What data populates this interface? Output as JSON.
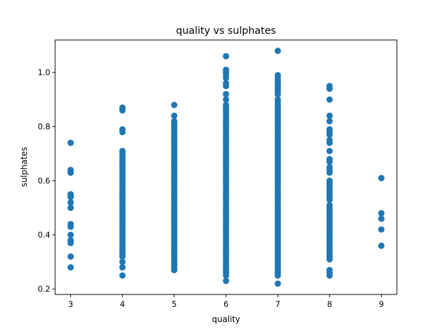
{
  "chart_data": {
    "type": "scatter",
    "title": "quality vs sulphates",
    "xlabel": "quality",
    "ylabel": "sulphates",
    "xlim": [
      2.7,
      9.3
    ],
    "ylim": [
      0.18,
      1.12
    ],
    "xticks": [
      3,
      4,
      5,
      6,
      7,
      8,
      9
    ],
    "xtick_labels": [
      "3",
      "4",
      "5",
      "6",
      "7",
      "8",
      "9"
    ],
    "yticks": [
      0.2,
      0.4,
      0.6,
      0.8,
      1.0
    ],
    "ytick_labels": [
      "0.2",
      "0.4",
      "0.6",
      "0.8",
      "1.0"
    ],
    "grid": false,
    "marker_color": "#1f77b4",
    "series": [
      {
        "points": [
          [
            3,
            0.74
          ],
          [
            3,
            0.64
          ],
          [
            3,
            0.63
          ],
          [
            3,
            0.55
          ],
          [
            3,
            0.54
          ],
          [
            3,
            0.52
          ],
          [
            3,
            0.5
          ],
          [
            3,
            0.44
          ],
          [
            3,
            0.43
          ],
          [
            3,
            0.4
          ],
          [
            3,
            0.38
          ],
          [
            3,
            0.37
          ],
          [
            3,
            0.32
          ],
          [
            3,
            0.28
          ],
          [
            4,
            0.87
          ],
          [
            4,
            0.86
          ],
          [
            4,
            0.79
          ],
          [
            4,
            0.78
          ],
          [
            4,
            0.71
          ],
          [
            4,
            0.7
          ],
          [
            4,
            0.69
          ],
          [
            4,
            0.68
          ],
          [
            4,
            0.67
          ],
          [
            4,
            0.66
          ],
          [
            4,
            0.65
          ],
          [
            4,
            0.64
          ],
          [
            4,
            0.63
          ],
          [
            4,
            0.62
          ],
          [
            4,
            0.61
          ],
          [
            4,
            0.6
          ],
          [
            4,
            0.59
          ],
          [
            4,
            0.58
          ],
          [
            4,
            0.57
          ],
          [
            4,
            0.56
          ],
          [
            4,
            0.55
          ],
          [
            4,
            0.54
          ],
          [
            4,
            0.53
          ],
          [
            4,
            0.52
          ],
          [
            4,
            0.51
          ],
          [
            4,
            0.5
          ],
          [
            4,
            0.49
          ],
          [
            4,
            0.48
          ],
          [
            4,
            0.47
          ],
          [
            4,
            0.46
          ],
          [
            4,
            0.45
          ],
          [
            4,
            0.44
          ],
          [
            4,
            0.43
          ],
          [
            4,
            0.42
          ],
          [
            4,
            0.41
          ],
          [
            4,
            0.4
          ],
          [
            4,
            0.39
          ],
          [
            4,
            0.38
          ],
          [
            4,
            0.37
          ],
          [
            4,
            0.36
          ],
          [
            4,
            0.35
          ],
          [
            4,
            0.34
          ],
          [
            4,
            0.33
          ],
          [
            4,
            0.32
          ],
          [
            4,
            0.3
          ],
          [
            4,
            0.28
          ],
          [
            4,
            0.25
          ],
          [
            5,
            0.88
          ],
          [
            5,
            0.84
          ],
          [
            5,
            0.82
          ],
          [
            5,
            0.81
          ],
          [
            5,
            0.8
          ],
          [
            5,
            0.79
          ],
          [
            5,
            0.78
          ],
          [
            5,
            0.77
          ],
          [
            5,
            0.76
          ],
          [
            5,
            0.75
          ],
          [
            5,
            0.74
          ],
          [
            5,
            0.73
          ],
          [
            5,
            0.72
          ],
          [
            5,
            0.71
          ],
          [
            5,
            0.7
          ],
          [
            5,
            0.69
          ],
          [
            5,
            0.68
          ],
          [
            5,
            0.67
          ],
          [
            5,
            0.66
          ],
          [
            5,
            0.65
          ],
          [
            5,
            0.64
          ],
          [
            5,
            0.63
          ],
          [
            5,
            0.62
          ],
          [
            5,
            0.61
          ],
          [
            5,
            0.6
          ],
          [
            5,
            0.59
          ],
          [
            5,
            0.58
          ],
          [
            5,
            0.57
          ],
          [
            5,
            0.56
          ],
          [
            5,
            0.55
          ],
          [
            5,
            0.54
          ],
          [
            5,
            0.53
          ],
          [
            5,
            0.52
          ],
          [
            5,
            0.51
          ],
          [
            5,
            0.5
          ],
          [
            5,
            0.49
          ],
          [
            5,
            0.48
          ],
          [
            5,
            0.47
          ],
          [
            5,
            0.46
          ],
          [
            5,
            0.45
          ],
          [
            5,
            0.44
          ],
          [
            5,
            0.43
          ],
          [
            5,
            0.42
          ],
          [
            5,
            0.41
          ],
          [
            5,
            0.4
          ],
          [
            5,
            0.39
          ],
          [
            5,
            0.38
          ],
          [
            5,
            0.37
          ],
          [
            5,
            0.36
          ],
          [
            5,
            0.35
          ],
          [
            5,
            0.34
          ],
          [
            5,
            0.33
          ],
          [
            5,
            0.32
          ],
          [
            5,
            0.31
          ],
          [
            5,
            0.3
          ],
          [
            5,
            0.29
          ],
          [
            5,
            0.28
          ],
          [
            5,
            0.27
          ],
          [
            6,
            1.06
          ],
          [
            6,
            1.01
          ],
          [
            6,
            1.0
          ],
          [
            6,
            0.99
          ],
          [
            6,
            0.98
          ],
          [
            6,
            0.96
          ],
          [
            6,
            0.95
          ],
          [
            6,
            0.92
          ],
          [
            6,
            0.9
          ],
          [
            6,
            0.88
          ],
          [
            6,
            0.87
          ],
          [
            6,
            0.86
          ],
          [
            6,
            0.85
          ],
          [
            6,
            0.84
          ],
          [
            6,
            0.83
          ],
          [
            6,
            0.82
          ],
          [
            6,
            0.81
          ],
          [
            6,
            0.8
          ],
          [
            6,
            0.79
          ],
          [
            6,
            0.78
          ],
          [
            6,
            0.77
          ],
          [
            6,
            0.76
          ],
          [
            6,
            0.75
          ],
          [
            6,
            0.74
          ],
          [
            6,
            0.73
          ],
          [
            6,
            0.72
          ],
          [
            6,
            0.71
          ],
          [
            6,
            0.7
          ],
          [
            6,
            0.69
          ],
          [
            6,
            0.68
          ],
          [
            6,
            0.67
          ],
          [
            6,
            0.66
          ],
          [
            6,
            0.65
          ],
          [
            6,
            0.64
          ],
          [
            6,
            0.63
          ],
          [
            6,
            0.62
          ],
          [
            6,
            0.61
          ],
          [
            6,
            0.6
          ],
          [
            6,
            0.59
          ],
          [
            6,
            0.58
          ],
          [
            6,
            0.57
          ],
          [
            6,
            0.56
          ],
          [
            6,
            0.55
          ],
          [
            6,
            0.54
          ],
          [
            6,
            0.53
          ],
          [
            6,
            0.52
          ],
          [
            6,
            0.51
          ],
          [
            6,
            0.5
          ],
          [
            6,
            0.49
          ],
          [
            6,
            0.48
          ],
          [
            6,
            0.47
          ],
          [
            6,
            0.46
          ],
          [
            6,
            0.45
          ],
          [
            6,
            0.44
          ],
          [
            6,
            0.43
          ],
          [
            6,
            0.42
          ],
          [
            6,
            0.41
          ],
          [
            6,
            0.4
          ],
          [
            6,
            0.39
          ],
          [
            6,
            0.38
          ],
          [
            6,
            0.37
          ],
          [
            6,
            0.36
          ],
          [
            6,
            0.35
          ],
          [
            6,
            0.34
          ],
          [
            6,
            0.33
          ],
          [
            6,
            0.32
          ],
          [
            6,
            0.31
          ],
          [
            6,
            0.3
          ],
          [
            6,
            0.29
          ],
          [
            6,
            0.28
          ],
          [
            6,
            0.27
          ],
          [
            6,
            0.26
          ],
          [
            6,
            0.25
          ],
          [
            6,
            0.23
          ],
          [
            7,
            1.08
          ],
          [
            7,
            0.99
          ],
          [
            7,
            0.98
          ],
          [
            7,
            0.97
          ],
          [
            7,
            0.96
          ],
          [
            7,
            0.95
          ],
          [
            7,
            0.94
          ],
          [
            7,
            0.93
          ],
          [
            7,
            0.92
          ],
          [
            7,
            0.9
          ],
          [
            7,
            0.89
          ],
          [
            7,
            0.88
          ],
          [
            7,
            0.87
          ],
          [
            7,
            0.86
          ],
          [
            7,
            0.85
          ],
          [
            7,
            0.84
          ],
          [
            7,
            0.83
          ],
          [
            7,
            0.82
          ],
          [
            7,
            0.81
          ],
          [
            7,
            0.8
          ],
          [
            7,
            0.79
          ],
          [
            7,
            0.78
          ],
          [
            7,
            0.77
          ],
          [
            7,
            0.76
          ],
          [
            7,
            0.75
          ],
          [
            7,
            0.74
          ],
          [
            7,
            0.73
          ],
          [
            7,
            0.72
          ],
          [
            7,
            0.71
          ],
          [
            7,
            0.7
          ],
          [
            7,
            0.69
          ],
          [
            7,
            0.68
          ],
          [
            7,
            0.67
          ],
          [
            7,
            0.66
          ],
          [
            7,
            0.65
          ],
          [
            7,
            0.64
          ],
          [
            7,
            0.63
          ],
          [
            7,
            0.62
          ],
          [
            7,
            0.61
          ],
          [
            7,
            0.6
          ],
          [
            7,
            0.59
          ],
          [
            7,
            0.58
          ],
          [
            7,
            0.57
          ],
          [
            7,
            0.56
          ],
          [
            7,
            0.55
          ],
          [
            7,
            0.54
          ],
          [
            7,
            0.53
          ],
          [
            7,
            0.52
          ],
          [
            7,
            0.51
          ],
          [
            7,
            0.5
          ],
          [
            7,
            0.49
          ],
          [
            7,
            0.48
          ],
          [
            7,
            0.47
          ],
          [
            7,
            0.46
          ],
          [
            7,
            0.45
          ],
          [
            7,
            0.44
          ],
          [
            7,
            0.43
          ],
          [
            7,
            0.42
          ],
          [
            7,
            0.41
          ],
          [
            7,
            0.4
          ],
          [
            7,
            0.39
          ],
          [
            7,
            0.38
          ],
          [
            7,
            0.37
          ],
          [
            7,
            0.36
          ],
          [
            7,
            0.35
          ],
          [
            7,
            0.34
          ],
          [
            7,
            0.33
          ],
          [
            7,
            0.32
          ],
          [
            7,
            0.31
          ],
          [
            7,
            0.3
          ],
          [
            7,
            0.29
          ],
          [
            7,
            0.28
          ],
          [
            7,
            0.27
          ],
          [
            7,
            0.26
          ],
          [
            7,
            0.25
          ],
          [
            7,
            0.22
          ],
          [
            8,
            0.95
          ],
          [
            8,
            0.94
          ],
          [
            8,
            0.9
          ],
          [
            8,
            0.84
          ],
          [
            8,
            0.82
          ],
          [
            8,
            0.79
          ],
          [
            8,
            0.78
          ],
          [
            8,
            0.77
          ],
          [
            8,
            0.75
          ],
          [
            8,
            0.74
          ],
          [
            8,
            0.71
          ],
          [
            8,
            0.68
          ],
          [
            8,
            0.67
          ],
          [
            8,
            0.65
          ],
          [
            8,
            0.64
          ],
          [
            8,
            0.63
          ],
          [
            8,
            0.6
          ],
          [
            8,
            0.59
          ],
          [
            8,
            0.58
          ],
          [
            8,
            0.57
          ],
          [
            8,
            0.56
          ],
          [
            8,
            0.55
          ],
          [
            8,
            0.54
          ],
          [
            8,
            0.53
          ],
          [
            8,
            0.51
          ],
          [
            8,
            0.5
          ],
          [
            8,
            0.49
          ],
          [
            8,
            0.48
          ],
          [
            8,
            0.47
          ],
          [
            8,
            0.46
          ],
          [
            8,
            0.45
          ],
          [
            8,
            0.44
          ],
          [
            8,
            0.43
          ],
          [
            8,
            0.42
          ],
          [
            8,
            0.41
          ],
          [
            8,
            0.4
          ],
          [
            8,
            0.39
          ],
          [
            8,
            0.38
          ],
          [
            8,
            0.37
          ],
          [
            8,
            0.36
          ],
          [
            8,
            0.35
          ],
          [
            8,
            0.34
          ],
          [
            8,
            0.33
          ],
          [
            8,
            0.32
          ],
          [
            8,
            0.31
          ],
          [
            8,
            0.27
          ],
          [
            8,
            0.26
          ],
          [
            8,
            0.25
          ],
          [
            9,
            0.61
          ],
          [
            9,
            0.48
          ],
          [
            9,
            0.46
          ],
          [
            9,
            0.42
          ],
          [
            9,
            0.36
          ]
        ]
      }
    ]
  }
}
